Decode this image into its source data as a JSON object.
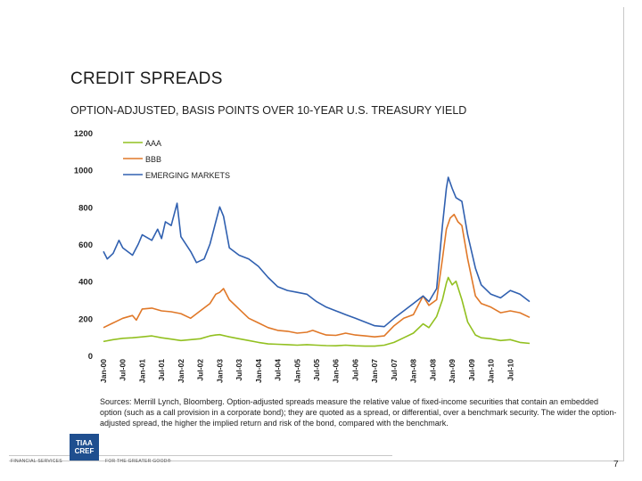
{
  "slide": {
    "title": "CREDIT SPREADS",
    "subtitle": "OPTION-ADJUSTED, BASIS POINTS OVER 10-YEAR U.S. TREASURY YIELD",
    "sources": "Sources: Merrill Lynch, Bloomberg. Option-adjusted spreads measure the relative value of fixed-income securities that contain an embedded option (such as a call provision in a corporate bond); they are quoted as a spread, or differential, over a benchmark security. The wider the option-adjusted spread, the higher the implied return and risk of the bond, compared with the benchmark.",
    "page_number": "7"
  },
  "logo": {
    "line1": "TIAA",
    "line2": "CREF",
    "left_caption": "FINANCIAL SERVICES",
    "right_caption": "FOR THE GREATER GOOD®",
    "color": "#1f4f8f"
  },
  "chart_data": {
    "type": "line",
    "ylim": [
      0,
      1200
    ],
    "y_ticks": [
      0,
      200,
      400,
      600,
      800,
      1000,
      1200
    ],
    "grid": false,
    "legend_position": "top-left",
    "x_tick_labels": [
      "Jan-00",
      "Jul-00",
      "Jan-01",
      "Jul-01",
      "Jan-02",
      "Jul-02",
      "Jan-03",
      "Jul-03",
      "Jan-04",
      "Jul-04",
      "Jan-05",
      "Jul-05",
      "Jan-06",
      "Jul-06",
      "Jan-07",
      "Jul-07",
      "Jan-08",
      "Jul-08",
      "Jan-09",
      "Jul-09",
      "Jan-10",
      "Jul-10"
    ],
    "x_range": [
      2000.0,
      2011.0
    ],
    "series": [
      {
        "name": "AAA",
        "color": "#92c020",
        "points": [
          [
            2000.0,
            75
          ],
          [
            2000.25,
            85
          ],
          [
            2000.5,
            92
          ],
          [
            2000.75,
            95
          ],
          [
            2001.0,
            100
          ],
          [
            2001.25,
            105
          ],
          [
            2001.5,
            95
          ],
          [
            2001.75,
            88
          ],
          [
            2002.0,
            80
          ],
          [
            2002.25,
            85
          ],
          [
            2002.5,
            90
          ],
          [
            2002.75,
            105
          ],
          [
            2002.9,
            110
          ],
          [
            2003.0,
            112
          ],
          [
            2003.25,
            100
          ],
          [
            2003.5,
            90
          ],
          [
            2003.75,
            80
          ],
          [
            2004.0,
            70
          ],
          [
            2004.25,
            62
          ],
          [
            2004.5,
            60
          ],
          [
            2004.75,
            58
          ],
          [
            2005.0,
            55
          ],
          [
            2005.25,
            58
          ],
          [
            2005.5,
            55
          ],
          [
            2005.75,
            53
          ],
          [
            2006.0,
            52
          ],
          [
            2006.25,
            55
          ],
          [
            2006.5,
            52
          ],
          [
            2006.75,
            50
          ],
          [
            2007.0,
            50
          ],
          [
            2007.25,
            55
          ],
          [
            2007.5,
            70
          ],
          [
            2007.75,
            95
          ],
          [
            2008.0,
            120
          ],
          [
            2008.25,
            170
          ],
          [
            2008.4,
            150
          ],
          [
            2008.6,
            210
          ],
          [
            2008.75,
            300
          ],
          [
            2008.85,
            390
          ],
          [
            2008.9,
            420
          ],
          [
            2009.0,
            380
          ],
          [
            2009.1,
            400
          ],
          [
            2009.25,
            300
          ],
          [
            2009.4,
            180
          ],
          [
            2009.6,
            110
          ],
          [
            2009.75,
            95
          ],
          [
            2010.0,
            90
          ],
          [
            2010.25,
            80
          ],
          [
            2010.5,
            85
          ],
          [
            2010.75,
            70
          ],
          [
            2011.0,
            65
          ]
        ]
      },
      {
        "name": "BBB",
        "color": "#e07828",
        "points": [
          [
            2000.0,
            150
          ],
          [
            2000.25,
            175
          ],
          [
            2000.5,
            200
          ],
          [
            2000.75,
            215
          ],
          [
            2000.85,
            190
          ],
          [
            2001.0,
            250
          ],
          [
            2001.25,
            255
          ],
          [
            2001.5,
            240
          ],
          [
            2001.75,
            235
          ],
          [
            2002.0,
            225
          ],
          [
            2002.25,
            200
          ],
          [
            2002.5,
            240
          ],
          [
            2002.75,
            280
          ],
          [
            2002.9,
            330
          ],
          [
            2003.0,
            340
          ],
          [
            2003.1,
            360
          ],
          [
            2003.25,
            300
          ],
          [
            2003.5,
            250
          ],
          [
            2003.75,
            200
          ],
          [
            2004.0,
            175
          ],
          [
            2004.25,
            150
          ],
          [
            2004.5,
            135
          ],
          [
            2004.75,
            130
          ],
          [
            2005.0,
            120
          ],
          [
            2005.25,
            125
          ],
          [
            2005.4,
            135
          ],
          [
            2005.6,
            120
          ],
          [
            2005.75,
            110
          ],
          [
            2006.0,
            108
          ],
          [
            2006.25,
            120
          ],
          [
            2006.5,
            110
          ],
          [
            2006.75,
            105
          ],
          [
            2007.0,
            100
          ],
          [
            2007.25,
            105
          ],
          [
            2007.5,
            160
          ],
          [
            2007.75,
            200
          ],
          [
            2008.0,
            220
          ],
          [
            2008.25,
            320
          ],
          [
            2008.4,
            270
          ],
          [
            2008.6,
            300
          ],
          [
            2008.75,
            520
          ],
          [
            2008.85,
            680
          ],
          [
            2008.95,
            740
          ],
          [
            2009.05,
            760
          ],
          [
            2009.15,
            720
          ],
          [
            2009.25,
            700
          ],
          [
            2009.4,
            520
          ],
          [
            2009.6,
            320
          ],
          [
            2009.75,
            280
          ],
          [
            2010.0,
            260
          ],
          [
            2010.25,
            230
          ],
          [
            2010.5,
            240
          ],
          [
            2010.75,
            230
          ],
          [
            2011.0,
            205
          ]
        ]
      },
      {
        "name": "EMERGING MARKETS",
        "color": "#3060b0",
        "points": [
          [
            2000.0,
            560
          ],
          [
            2000.1,
            520
          ],
          [
            2000.25,
            550
          ],
          [
            2000.4,
            620
          ],
          [
            2000.5,
            580
          ],
          [
            2000.75,
            540
          ],
          [
            2000.9,
            600
          ],
          [
            2001.0,
            650
          ],
          [
            2001.25,
            620
          ],
          [
            2001.4,
            680
          ],
          [
            2001.5,
            630
          ],
          [
            2001.6,
            720
          ],
          [
            2001.75,
            700
          ],
          [
            2001.9,
            820
          ],
          [
            2002.0,
            640
          ],
          [
            2002.25,
            560
          ],
          [
            2002.4,
            500
          ],
          [
            2002.6,
            520
          ],
          [
            2002.75,
            600
          ],
          [
            2002.9,
            720
          ],
          [
            2003.0,
            800
          ],
          [
            2003.1,
            750
          ],
          [
            2003.25,
            580
          ],
          [
            2003.5,
            540
          ],
          [
            2003.75,
            520
          ],
          [
            2004.0,
            480
          ],
          [
            2004.25,
            420
          ],
          [
            2004.5,
            370
          ],
          [
            2004.75,
            350
          ],
          [
            2005.0,
            340
          ],
          [
            2005.25,
            330
          ],
          [
            2005.5,
            290
          ],
          [
            2005.75,
            260
          ],
          [
            2006.0,
            240
          ],
          [
            2006.25,
            220
          ],
          [
            2006.5,
            200
          ],
          [
            2006.75,
            180
          ],
          [
            2007.0,
            160
          ],
          [
            2007.25,
            155
          ],
          [
            2007.5,
            200
          ],
          [
            2007.75,
            240
          ],
          [
            2008.0,
            280
          ],
          [
            2008.25,
            320
          ],
          [
            2008.4,
            290
          ],
          [
            2008.6,
            360
          ],
          [
            2008.75,
            700
          ],
          [
            2008.85,
            900
          ],
          [
            2008.9,
            960
          ],
          [
            2009.0,
            900
          ],
          [
            2009.1,
            850
          ],
          [
            2009.25,
            830
          ],
          [
            2009.4,
            650
          ],
          [
            2009.6,
            470
          ],
          [
            2009.75,
            380
          ],
          [
            2010.0,
            330
          ],
          [
            2010.25,
            310
          ],
          [
            2010.5,
            350
          ],
          [
            2010.75,
            330
          ],
          [
            2011.0,
            290
          ]
        ]
      }
    ]
  }
}
